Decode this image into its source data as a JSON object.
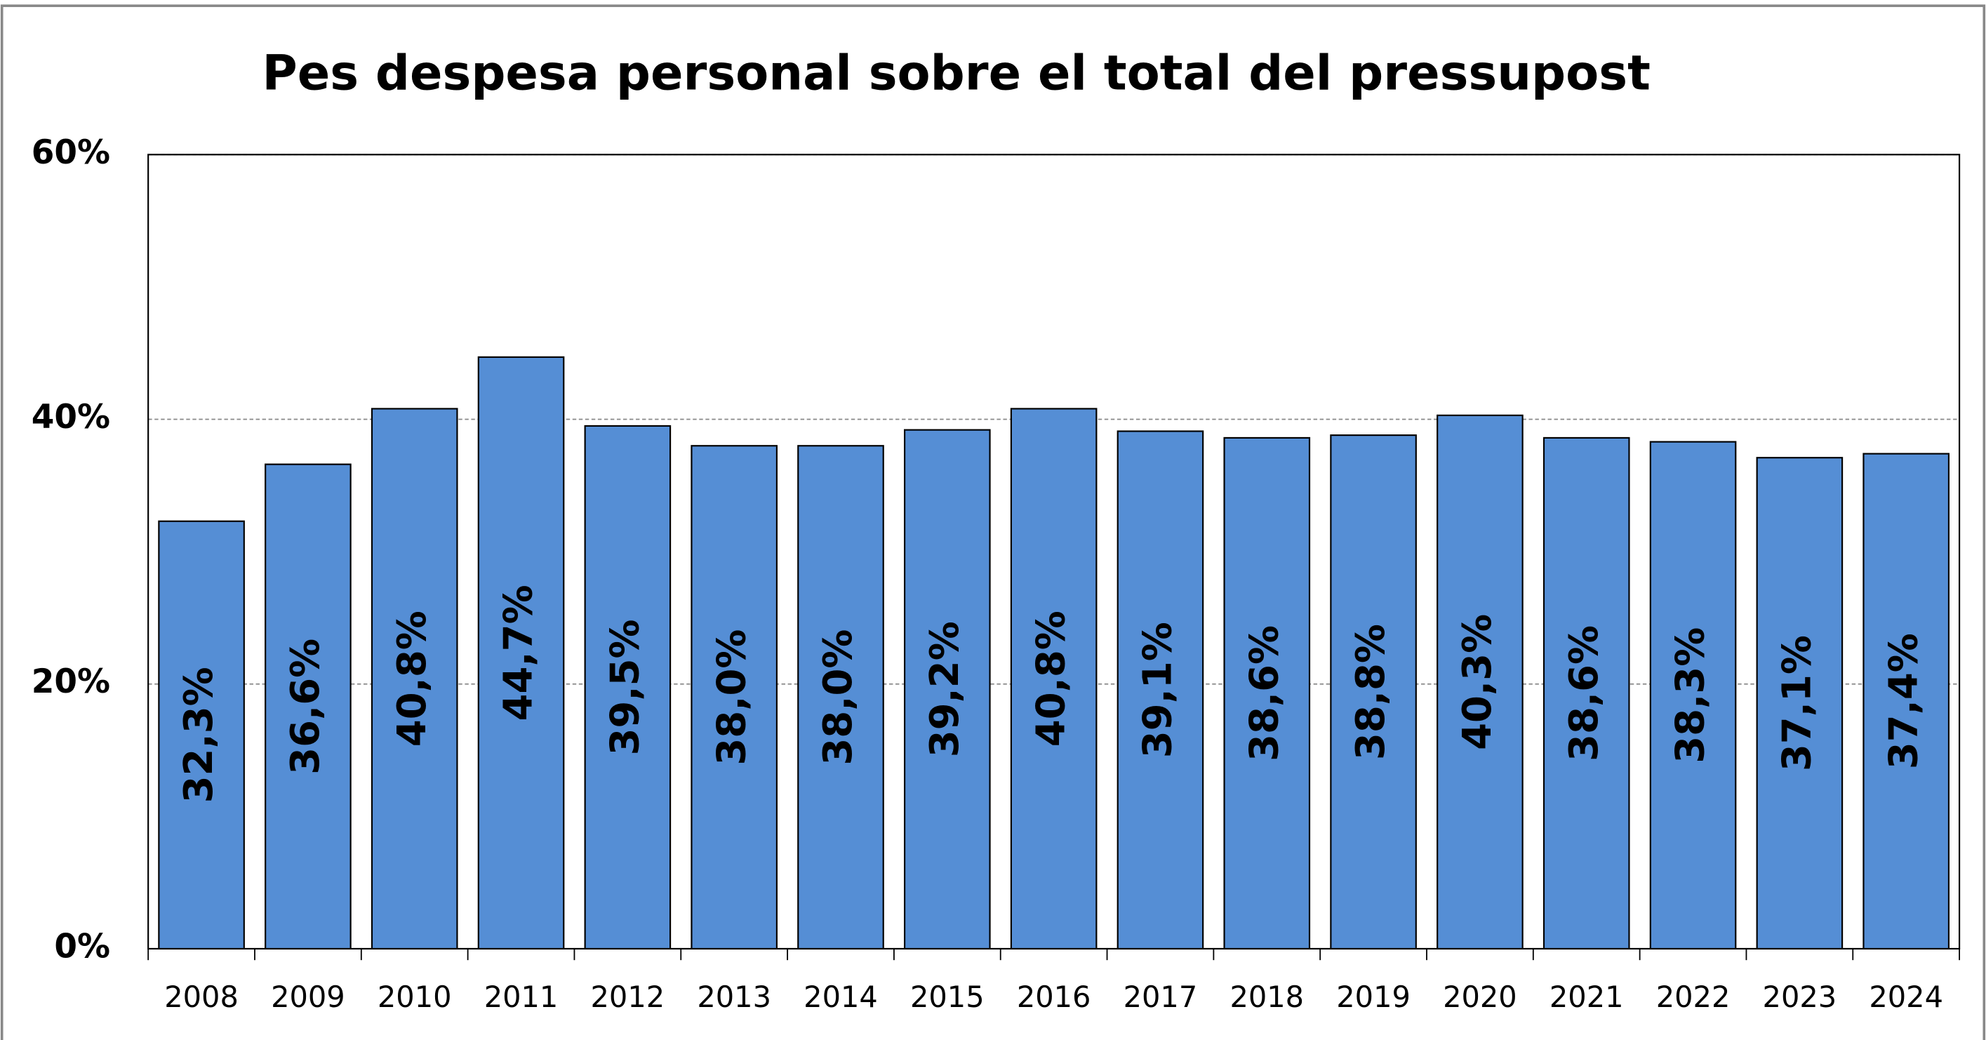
{
  "chart_data": {
    "type": "bar",
    "title": "Pes despesa personal sobre el total del pressupost",
    "categories": [
      "2008",
      "2009",
      "2010",
      "2011",
      "2012",
      "2013",
      "2014",
      "2015",
      "2016",
      "2017",
      "2018",
      "2019",
      "2020",
      "2021",
      "2022",
      "2023",
      "2024"
    ],
    "values": [
      32.3,
      36.6,
      40.8,
      44.7,
      39.5,
      38.0,
      38.0,
      39.2,
      40.8,
      39.1,
      38.6,
      38.8,
      40.3,
      38.6,
      38.3,
      37.1,
      37.4
    ],
    "value_labels": [
      "32,3%",
      "36,6%",
      "40,8%",
      "44,7%",
      "39,5%",
      "38,0%",
      "38,0%",
      "39,2%",
      "40,8%",
      "39,1%",
      "38,6%",
      "38,8%",
      "40,3%",
      "38,6%",
      "38,3%",
      "37,1%",
      "37,4%"
    ],
    "color": "#558ed5",
    "ylim": [
      0,
      60
    ],
    "yticks": [
      {
        "value": 0,
        "label": "0%"
      },
      {
        "value": 20,
        "label": "20%"
      },
      {
        "value": 40,
        "label": "40%"
      },
      {
        "value": 60,
        "label": "60%"
      }
    ],
    "grid": true
  }
}
